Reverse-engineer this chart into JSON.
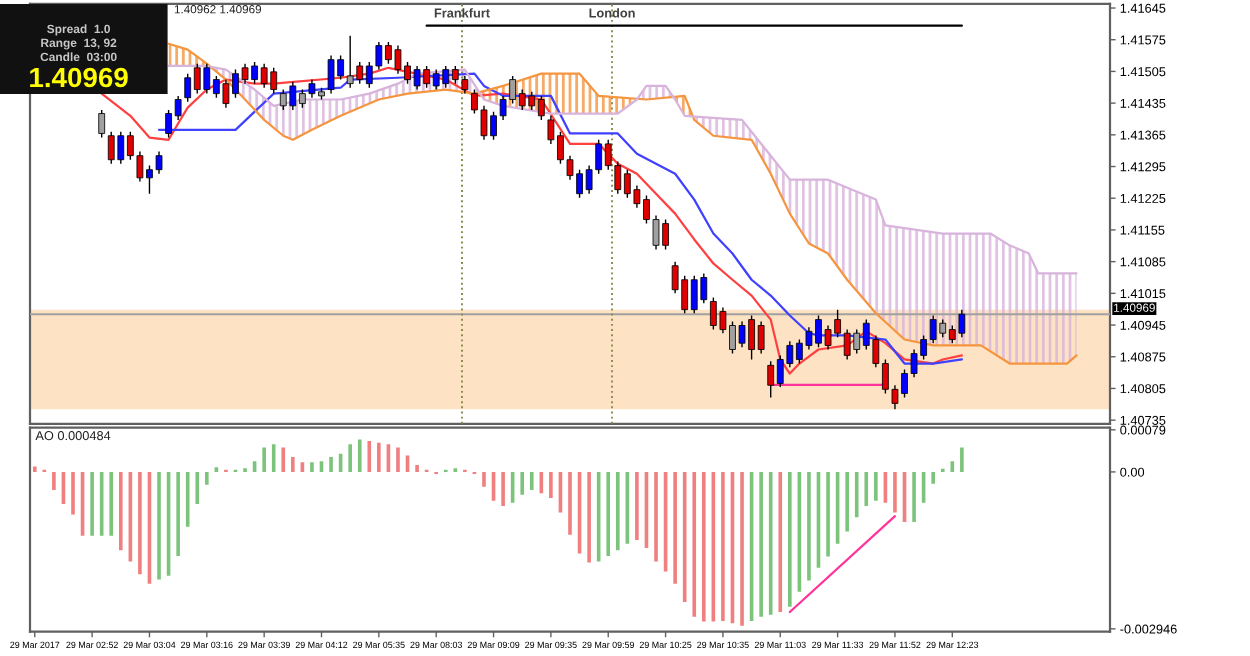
{
  "chart_data": [
    {
      "type": "candlestick",
      "annotations": [
        "1.40962 1.40969",
        "Spread  1.0",
        "Range  13, 92",
        "Candle  03:00",
        "1.40969",
        "Frankfurt",
        "London"
      ],
      "categories": [
        null,
        null,
        null,
        null,
        null,
        null,
        null,
        null,
        null,
        null,
        null,
        null,
        null,
        null,
        null,
        null,
        null,
        null,
        null,
        null,
        null,
        null,
        null,
        null,
        null,
        null,
        null,
        null,
        null,
        null,
        null,
        null,
        null,
        null,
        null,
        null,
        null,
        null,
        null,
        null,
        null,
        null,
        null,
        null,
        null,
        null,
        null,
        null,
        null,
        null,
        null,
        null,
        null,
        null,
        null,
        null,
        null,
        null,
        null,
        null,
        null,
        null,
        null,
        null,
        null,
        null,
        null,
        null,
        null,
        null,
        null,
        null,
        null,
        null,
        null,
        null,
        null,
        null,
        null,
        null,
        null,
        null,
        null,
        null,
        null,
        null,
        null,
        null,
        null,
        null,
        null,
        null,
        null,
        null,
        null,
        null,
        null,
        null,
        null,
        null,
        null,
        null,
        null,
        null,
        null,
        null,
        null,
        null,
        null,
        null,
        null,
        null,
        null
      ],
      "ohlc": [
        null,
        null,
        null,
        null,
        null,
        null,
        null,
        [
          1.41412,
          1.4142,
          1.41359,
          1.41368
        ],
        [
          1.41363,
          1.41372,
          1.41301,
          1.4131
        ],
        [
          1.4131,
          1.41372,
          1.41301,
          1.41363
        ],
        [
          1.41363,
          1.41372,
          1.4131,
          1.41319
        ],
        [
          1.41319,
          1.41328,
          1.41262,
          1.4127
        ],
        [
          1.4127,
          1.41297,
          1.41235,
          1.41288
        ],
        [
          1.41288,
          1.41328,
          1.41279,
          1.41319
        ],
        [
          1.41368,
          1.4142,
          1.41359,
          1.41412
        ],
        [
          1.41407,
          1.41451,
          1.41398,
          1.41443
        ],
        [
          1.41447,
          1.415,
          1.41438,
          1.41491
        ],
        [
          1.41513,
          1.41522,
          1.41456,
          1.41465
        ],
        [
          1.41465,
          1.41522,
          1.41456,
          1.41513
        ],
        [
          1.41456,
          1.41495,
          1.41447,
          1.41487
        ],
        [
          1.41478,
          1.41487,
          1.41425,
          1.41434
        ],
        [
          1.41456,
          1.41509,
          1.41447,
          1.415
        ],
        [
          1.41513,
          1.41522,
          1.41478,
          1.41487
        ],
        [
          1.41487,
          1.41526,
          1.41478,
          1.41517
        ],
        [
          1.41513,
          1.41522,
          1.41469,
          1.41478
        ],
        [
          1.41504,
          1.41513,
          1.41456,
          1.41465
        ],
        [
          1.41456,
          1.41465,
          1.4142,
          1.41429
        ],
        [
          1.41429,
          1.41482,
          1.4142,
          1.41473
        ],
        [
          1.41456,
          1.41465,
          1.41425,
          1.41434
        ],
        [
          1.41456,
          1.41487,
          1.41447,
          1.41478
        ],
        [
          1.4146,
          1.41469,
          1.41443,
          1.41451
        ],
        [
          1.41465,
          1.4154,
          1.41456,
          1.41531
        ],
        [
          1.41495,
          1.4154,
          1.41487,
          1.41531
        ],
        [
          1.41495,
          1.41584,
          1.41469,
          1.41478
        ],
        [
          1.41517,
          1.41526,
          1.41478,
          1.41487
        ],
        [
          1.41478,
          1.41526,
          1.41469,
          1.41517
        ],
        [
          1.41517,
          1.4157,
          1.41509,
          1.41562
        ],
        [
          1.41562,
          1.4157,
          1.41522,
          1.41531
        ],
        [
          1.41553,
          1.41562,
          1.415,
          1.41509
        ],
        [
          1.41517,
          1.41526,
          1.41478,
          1.41487
        ],
        [
          1.41473,
          1.41517,
          1.41465,
          1.41509
        ],
        [
          1.41509,
          1.41517,
          1.41469,
          1.41478
        ],
        [
          1.41473,
          1.41509,
          1.41465,
          1.415
        ],
        [
          1.41478,
          1.41517,
          1.41469,
          1.41509
        ],
        [
          1.41509,
          1.41517,
          1.41478,
          1.41487
        ],
        [
          1.41487,
          1.41495,
          1.41456,
          1.41465
        ],
        [
          1.41456,
          1.41465,
          1.41412,
          1.4142
        ],
        [
          1.4142,
          1.41429,
          1.41354,
          1.41363
        ],
        [
          1.41363,
          1.41416,
          1.41354,
          1.41407
        ],
        [
          1.41407,
          1.41451,
          1.41398,
          1.41443
        ],
        [
          1.41487,
          1.41495,
          1.41434,
          1.41443
        ],
        [
          1.41456,
          1.41465,
          1.4142,
          1.41429
        ],
        [
          1.41451,
          1.4146,
          1.4142,
          1.41429
        ],
        [
          1.41443,
          1.41451,
          1.41398,
          1.41407
        ],
        [
          1.41398,
          1.41407,
          1.41345,
          1.41354
        ],
        [
          1.41363,
          1.41372,
          1.41301,
          1.4131
        ],
        [
          1.4131,
          1.41319,
          1.41266,
          1.41275
        ],
        [
          1.41235,
          1.41288,
          1.41226,
          1.41279
        ],
        [
          1.41244,
          1.41297,
          1.41235,
          1.41288
        ],
        [
          1.41288,
          1.41354,
          1.41279,
          1.41345
        ],
        [
          1.41345,
          1.41354,
          1.41288,
          1.41297
        ],
        [
          1.41297,
          1.41306,
          1.41235,
          1.41244
        ],
        [
          1.41279,
          1.41288,
          1.41226,
          1.41235
        ],
        [
          1.41244,
          1.41253,
          1.41204,
          1.41213
        ],
        [
          1.41222,
          1.41231,
          1.41169,
          1.41178
        ],
        [
          1.41178,
          1.41187,
          1.41112,
          1.41121
        ],
        [
          1.41169,
          1.41178,
          1.41112,
          1.41121
        ],
        [
          1.41076,
          1.41085,
          1.41015,
          1.41023
        ],
        [
          1.41045,
          1.41054,
          1.40971,
          1.40979
        ],
        [
          1.40979,
          1.41054,
          1.40971,
          1.41045
        ],
        [
          1.41001,
          1.41059,
          1.40993,
          1.4105
        ],
        [
          1.40997,
          1.41006,
          1.40935,
          1.40944
        ],
        [
          1.40975,
          1.40984,
          1.40927,
          1.40935
        ],
        [
          1.40944,
          1.40953,
          1.40882,
          1.40891
        ],
        [
          1.40905,
          1.40953,
          1.40896,
          1.40944
        ],
        [
          1.40957,
          1.40966,
          1.40869,
          1.40891
        ],
        [
          1.40944,
          1.40953,
          1.40882,
          1.40891
        ],
        [
          1.40856,
          1.40865,
          1.40785,
          1.40812
        ],
        [
          1.40816,
          1.40878,
          1.40808,
          1.40869
        ],
        [
          1.4086,
          1.40909,
          1.40852,
          1.409
        ],
        [
          1.40869,
          1.40913,
          1.4086,
          1.40905
        ],
        [
          1.409,
          1.4094,
          1.40891,
          1.40931
        ],
        [
          1.40905,
          1.40966,
          1.40896,
          1.40957
        ],
        [
          1.40935,
          1.40944,
          1.40891,
          1.409
        ],
        [
          1.40957,
          1.40979,
          1.40918,
          1.40927
        ],
        [
          1.40927,
          1.40935,
          1.40869,
          1.40878
        ],
        [
          1.40927,
          1.40935,
          1.40882,
          1.40891
        ],
        [
          1.409,
          1.40957,
          1.40891,
          1.40949
        ],
        [
          1.40913,
          1.40922,
          1.40852,
          1.4086
        ],
        [
          1.4086,
          1.40869,
          1.40794,
          1.40803
        ],
        [
          1.40803,
          1.40812,
          1.40759,
          1.40772
        ],
        [
          1.40794,
          1.40847,
          1.40785,
          1.40838
        ],
        [
          1.40838,
          1.40891,
          1.4083,
          1.40882
        ],
        [
          1.40878,
          1.40922,
          1.40869,
          1.40913
        ],
        [
          1.40913,
          1.40966,
          1.40905,
          1.40957
        ],
        [
          1.40949,
          1.40957,
          1.40918,
          1.40927
        ],
        [
          1.40935,
          1.40944,
          1.40905,
          1.40913
        ],
        [
          1.40927,
          1.40979,
          1.40918,
          1.40969
        ],
        null,
        null,
        null,
        null,
        null,
        null,
        null,
        null,
        null,
        null,
        null,
        null,
        null,
        null,
        null
      ],
      "colors": [
        "#0000ff",
        "#e00000",
        "#0000ff",
        "#e00000",
        "#e00000",
        "#e00000",
        "#e00000",
        "#a0a0a0",
        "#e00000",
        "#0000ff",
        "#e00000",
        "#e00000",
        "#0000ff",
        "#0000ff",
        "#0000ff",
        "#0000ff",
        "#0000ff",
        "#e00000",
        "#0000ff",
        "#0000ff",
        "#e00000",
        "#0000ff",
        "#e00000",
        "#0000ff",
        "#e00000",
        "#e00000",
        "#a0a0a0",
        "#0000ff",
        "#a0a0a0",
        "#0000ff",
        "#a0a0a0",
        "#0000ff",
        "#0000ff",
        "#a0a0a0",
        "#e00000",
        "#0000ff",
        "#0000ff",
        "#e00000",
        "#e00000",
        "#e00000",
        "#0000ff",
        "#e00000",
        "#0000ff",
        "#0000ff",
        "#e00000",
        "#e00000",
        "#e00000",
        "#e00000",
        "#0000ff",
        "#0000ff",
        "#a0a0a0",
        "#e00000",
        "#e00000",
        "#e00000",
        "#e00000",
        "#e00000",
        "#e00000",
        "#0000ff",
        "#0000ff",
        "#0000ff",
        "#e00000",
        "#e00000",
        "#e00000",
        "#e00000",
        "#e00000",
        "#a0a0a0",
        "#e00000",
        "#e00000",
        "#e00000",
        "#0000ff",
        "#0000ff",
        "#e00000",
        "#e00000",
        "#a0a0a0",
        "#0000ff",
        "#e00000",
        "#e00000",
        "#e00000",
        "#0000ff",
        "#0000ff",
        "#0000ff",
        "#0000ff",
        "#0000ff",
        "#e00000",
        "#e00000",
        "#e00000",
        "#a0a0a0",
        "#0000ff",
        "#e00000",
        "#e00000",
        "#e00000",
        "#0000ff",
        "#0000ff",
        "#0000ff",
        "#0000ff",
        "#a0a0a0",
        "#e00000",
        "#0000ff",
        null,
        null,
        null,
        null,
        null,
        null,
        null,
        null,
        null,
        null,
        null,
        null,
        null,
        null,
        null
      ],
      "series": [
        {
          "type": "line",
          "color": "#ff4040",
          "values": [
            null,
            null,
            null,
            null,
            null,
            null,
            null,
            1.41456,
            null,
            null,
            1.41407,
            null,
            1.41359,
            null,
            1.41354,
            1.4139,
            1.41425,
            null,
            1.41465,
            null,
            1.41487,
            null,
            null,
            1.41478,
            null,
            1.41478,
            null,
            null,
            null,
            null,
            null,
            null,
            1.41491,
            null,
            null,
            1.415,
            null,
            1.41513,
            null,
            null,
            null,
            null,
            null,
            1.41487,
            null,
            null,
            1.41451,
            null,
            null,
            1.41456,
            null,
            null,
            null,
            1.41443,
            null,
            null,
            1.41345,
            null,
            null,
            1.41345,
            null,
            1.41301,
            null,
            1.41279,
            null,
            1.41235,
            null,
            1.41191,
            null,
            1.41134,
            null,
            1.41081,
            null,
            1.41045,
            null,
            1.4101,
            null,
            1.40957,
            1.40869,
            1.40838,
            1.4086,
            null,
            1.40891,
            null,
            null,
            1.409,
            null,
            1.40931,
            null,
            1.40905,
            null,
            1.40869,
            null,
            null,
            1.4086,
            1.40869,
            null,
            1.40878,
            null,
            null,
            null,
            null,
            null,
            null,
            null,
            null,
            null,
            null,
            null,
            null,
            null,
            null,
            null
          ]
        },
        {
          "type": "line",
          "color": "#4040ff",
          "values": [
            null,
            null,
            null,
            null,
            null,
            null,
            null,
            null,
            null,
            null,
            null,
            null,
            null,
            1.41376,
            null,
            null,
            null,
            null,
            null,
            null,
            null,
            1.41376,
            null,
            null,
            null,
            1.41456,
            null,
            null,
            null,
            null,
            null,
            null,
            1.41469,
            1.41487,
            null,
            null,
            null,
            null,
            1.41491,
            null,
            null,
            null,
            null,
            null,
            null,
            null,
            1.415,
            1.41473,
            null,
            1.41451,
            null,
            null,
            null,
            null,
            1.41451,
            null,
            1.41368,
            null,
            null,
            null,
            null,
            1.41368,
            null,
            1.41323,
            null,
            1.41301,
            null,
            1.41279,
            null,
            1.41222,
            null,
            1.41147,
            null,
            1.41103,
            null,
            1.41045,
            null,
            1.4101,
            null,
            1.40966,
            null,
            1.40927,
            1.40922,
            null,
            null,
            1.40922,
            null,
            null,
            null,
            1.40913,
            null,
            1.4086,
            null,
            null,
            1.4086,
            null,
            null,
            1.40869,
            null,
            null,
            null,
            null,
            null,
            null,
            null,
            null,
            null,
            null,
            null,
            null,
            null,
            null,
            null
          ]
        },
        {
          "type": "line",
          "color": "#f5953f",
          "values": [
            null,
            null,
            null,
            null,
            null,
            null,
            null,
            null,
            null,
            null,
            null,
            null,
            null,
            null,
            1.41566,
            null,
            1.41553,
            null,
            1.41522,
            null,
            1.41487,
            null,
            1.41443,
            null,
            1.41398,
            null,
            1.41363,
            1.41354,
            null,
            1.41376,
            null,
            null,
            1.41407,
            null,
            null,
            null,
            1.41443,
            null,
            null,
            1.41456,
            null,
            null,
            null,
            1.41465,
            null,
            null,
            1.41456,
            null,
            null,
            1.41473,
            null,
            null,
            null,
            1.415,
            null,
            null,
            null,
            1.415,
            null,
            1.41451,
            null,
            null,
            null,
            null,
            1.41443,
            null,
            null,
            null,
            1.41451,
            1.41398,
            null,
            1.41363,
            null,
            null,
            null,
            1.41354,
            null,
            1.41279,
            null,
            1.41191,
            null,
            1.41125,
            null,
            1.41103,
            null,
            1.41045,
            null,
            null,
            1.40971,
            null,
            null,
            1.40913,
            null,
            null,
            1.409,
            null,
            1.409,
            null,
            null,
            1.409,
            null,
            null,
            1.4086,
            null,
            null,
            null,
            null,
            null,
            1.4086,
            1.40878,
            null,
            null,
            null
          ]
        },
        {
          "type": "line",
          "color": "#d8b4dc",
          "values": [
            null,
            null,
            null,
            null,
            null,
            null,
            null,
            null,
            null,
            null,
            null,
            null,
            null,
            null,
            1.41517,
            null,
            null,
            null,
            1.41517,
            null,
            1.41509,
            null,
            null,
            1.41465,
            null,
            1.41429,
            null,
            null,
            1.41443,
            null,
            null,
            null,
            1.41443,
            null,
            null,
            1.41456,
            null,
            null,
            1.41478,
            null,
            1.415,
            null,
            null,
            null,
            null,
            1.41509,
            null,
            1.41443,
            null,
            1.41429,
            null,
            null,
            null,
            null,
            1.41412,
            null,
            null,
            null,
            null,
            null,
            null,
            1.41412,
            null,
            1.41443,
            1.41473,
            null,
            1.41473,
            1.41443,
            1.41407,
            null,
            null,
            null,
            null,
            null,
            1.41398,
            null,
            null,
            null,
            null,
            1.41266,
            null,
            null,
            null,
            1.41266,
            null,
            null,
            null,
            null,
            1.41222,
            1.41165,
            null,
            null,
            null,
            null,
            null,
            1.41147,
            null,
            null,
            null,
            null,
            1.41147,
            null,
            1.41121,
            null,
            1.41103,
            1.41059,
            null,
            null,
            null,
            1.41059,
            null,
            null,
            null
          ]
        },
        {
          "type": "line",
          "color": "#000000",
          "values": [
            null,
            null,
            null,
            null,
            null,
            null,
            null,
            null,
            null,
            null,
            null,
            null,
            null,
            null,
            null,
            null,
            null,
            null,
            null,
            null,
            null,
            null,
            null,
            null,
            null,
            null,
            null,
            null,
            null,
            null,
            null,
            null,
            null,
            null,
            null,
            null,
            null,
            null,
            null,
            null,
            null,
            1.41606,
            1.41606,
            1.41606,
            1.41606,
            1.41606,
            1.41606,
            1.41606,
            1.41606,
            1.41606,
            1.41606,
            1.41606,
            1.41606,
            1.41606,
            1.41606,
            1.41606,
            1.41606,
            1.41606,
            1.41606,
            1.41606,
            1.41606,
            1.41606,
            1.41606,
            1.41606,
            1.41606,
            1.41606,
            1.41606,
            1.41606,
            1.41606,
            1.41606,
            1.41606,
            1.41606,
            1.41606,
            1.41606,
            1.41606,
            1.41606,
            1.41606,
            1.41606,
            1.41606,
            1.41606,
            1.41606,
            1.41606,
            1.41606,
            1.41606,
            1.41606,
            1.41606,
            1.41606,
            1.41606,
            1.41606,
            1.41606,
            1.41606,
            1.41606,
            1.41606,
            1.41606,
            1.41606,
            1.41606,
            1.41606,
            1.41606,
            null,
            null,
            null,
            null,
            null,
            null,
            null,
            null,
            null,
            null,
            null,
            null,
            null,
            null,
            null
          ]
        },
        {
          "type": "line",
          "color": "#ff3399",
          "values": [
            null,
            null,
            null,
            null,
            null,
            null,
            null,
            null,
            null,
            null,
            null,
            null,
            null,
            null,
            null,
            null,
            null,
            null,
            null,
            null,
            null,
            null,
            null,
            null,
            null,
            null,
            null,
            null,
            null,
            null,
            null,
            null,
            null,
            null,
            null,
            null,
            null,
            null,
            null,
            null,
            null,
            null,
            null,
            null,
            null,
            null,
            null,
            null,
            null,
            null,
            null,
            null,
            null,
            null,
            null,
            null,
            null,
            null,
            null,
            null,
            null,
            null,
            null,
            null,
            null,
            null,
            null,
            null,
            null,
            null,
            null,
            null,
            null,
            null,
            null,
            null,
            null,
            1.40813,
            1.40813,
            1.40813,
            1.40813,
            1.40813,
            1.40813,
            1.40813,
            1.40813,
            1.40813,
            1.40813,
            1.40813,
            1.40813,
            1.40813,
            null,
            null,
            null,
            null,
            null,
            null,
            null,
            null,
            null,
            null,
            null,
            null,
            null,
            null,
            null,
            null,
            null,
            null,
            null,
            null,
            null,
            null,
            null
          ]
        }
      ],
      "bands": [
        {
          "axis": "y",
          "from": 1.40759,
          "to": 1.40979,
          "color": "#fde3c3"
        }
      ],
      "ref_lines": [
        {
          "axis": "y",
          "value": 1.40969,
          "label": "1.40969",
          "color": "#a0a0a0",
          "line_style": "solid"
        }
      ],
      "ylim": [
        1.40727,
        1.41654
      ],
      "yticks": [
        1.41645,
        1.41575,
        1.41505,
        1.41435,
        1.41365,
        1.41295,
        1.41225,
        1.41155,
        1.41085,
        1.41015,
        1.40945,
        1.40875,
        1.40805,
        1.40735
      ],
      "tick_labels": "y"
    },
    {
      "type": "bar",
      "title": "AO 0.000484",
      "categories": [
        "29 Mar 2017",
        null,
        null,
        null,
        null,
        null,
        "29 Mar 02:52",
        null,
        null,
        null,
        null,
        null,
        "29 Mar 03:04",
        null,
        null,
        null,
        null,
        null,
        "29 Mar 03:16",
        null,
        null,
        null,
        null,
        null,
        "29 Mar 03:39",
        null,
        null,
        null,
        null,
        null,
        "29 Mar 04:12",
        null,
        null,
        null,
        null,
        null,
        "29 Mar 05:35",
        null,
        null,
        null,
        null,
        null,
        "29 Mar 08:03",
        null,
        null,
        null,
        null,
        null,
        "29 Mar 09:09",
        null,
        null,
        null,
        null,
        null,
        "29 Mar 09:35",
        null,
        null,
        null,
        null,
        null,
        "29 Mar 09:59",
        null,
        null,
        null,
        null,
        null,
        "29 Mar 10:25",
        null,
        null,
        null,
        null,
        null,
        "29 Mar 10:35",
        null,
        null,
        null,
        null,
        null,
        "29 Mar 11:03",
        null,
        null,
        null,
        null,
        null,
        "29 Mar 11:33",
        null,
        null,
        null,
        null,
        null,
        "29 Mar 11:52",
        null,
        null,
        null,
        null,
        null,
        "29 Mar 12:23",
        null,
        null,
        null,
        null,
        null,
        null,
        null,
        null,
        null,
        null,
        null,
        null,
        null,
        null,
        null,
        null
      ],
      "values": [
        0.0001,
        4e-05,
        -0.00034,
        -0.0006,
        -0.0008,
        -0.0012,
        -0.0012,
        -0.0012,
        -0.0012,
        -0.00147,
        -0.00168,
        -0.00192,
        -0.0021,
        -0.00202,
        -0.00195,
        -0.00158,
        -0.00103,
        -0.0006,
        -0.00024,
        9e-05,
        4e-05,
        4e-05,
        7e-05,
        0.0002,
        0.00046,
        0.00052,
        0.00046,
        0.00028,
        0.00018,
        0.00018,
        0.0002,
        0.00028,
        0.00034,
        0.00052,
        0.00061,
        0.00058,
        0.00055,
        0.00052,
        0.00046,
        0.00031,
        0.00013,
        4e-05,
        -4e-05,
        4e-05,
        7e-05,
        4e-05,
        -4e-05,
        -0.00028,
        -0.00054,
        -0.00064,
        -0.00058,
        -0.00043,
        -0.00034,
        -0.0004,
        -0.00049,
        -0.00076,
        -0.00118,
        -0.00153,
        -0.0017,
        -0.00168,
        -0.00158,
        -0.00147,
        -0.00135,
        -0.00128,
        -0.00143,
        -0.00168,
        -0.00187,
        -0.0021,
        -0.00244,
        -0.00272,
        -0.00281,
        -0.00281,
        -0.0028,
        -0.00284,
        -0.00289,
        -0.0028,
        -0.00272,
        -0.00268,
        -0.00263,
        -0.00253,
        -0.00225,
        -0.00204,
        -0.0018,
        -0.00159,
        -0.00135,
        -0.00112,
        -0.00085,
        -0.00064,
        -0.00054,
        -0.00058,
        -0.00076,
        -0.00094,
        -0.00094,
        -0.00058,
        -0.00022,
        6e-05,
        0.0002,
        0.00046,
        null,
        null,
        null,
        null,
        null,
        null,
        null,
        null,
        null,
        null,
        null,
        null,
        null,
        null,
        null
      ],
      "colors": [
        "#f08080",
        "#f08080",
        "#f08080",
        "#f08080",
        "#f08080",
        "#f08080",
        "#7cc47c",
        "#7cc47c",
        "#7cc47c",
        "#f08080",
        "#f08080",
        "#f08080",
        "#f08080",
        "#7cc47c",
        "#7cc47c",
        "#7cc47c",
        "#7cc47c",
        "#7cc47c",
        "#7cc47c",
        "#7cc47c",
        "#f08080",
        "#7cc47c",
        "#7cc47c",
        "#7cc47c",
        "#7cc47c",
        "#7cc47c",
        "#f08080",
        "#f08080",
        "#f08080",
        "#7cc47c",
        "#7cc47c",
        "#7cc47c",
        "#7cc47c",
        "#7cc47c",
        "#7cc47c",
        "#f08080",
        "#f08080",
        "#f08080",
        "#f08080",
        "#f08080",
        "#f08080",
        "#f08080",
        "#f08080",
        "#7cc47c",
        "#7cc47c",
        "#f08080",
        "#f08080",
        "#f08080",
        "#f08080",
        "#f08080",
        "#7cc47c",
        "#7cc47c",
        "#7cc47c",
        "#f08080",
        "#f08080",
        "#f08080",
        "#f08080",
        "#f08080",
        "#f08080",
        "#7cc47c",
        "#7cc47c",
        "#7cc47c",
        "#7cc47c",
        "#f08080",
        "#f08080",
        "#f08080",
        "#f08080",
        "#f08080",
        "#f08080",
        "#f08080",
        "#f08080",
        "#f08080",
        "#f08080",
        "#f08080",
        "#f08080",
        "#7cc47c",
        "#7cc47c",
        "#7cc47c",
        "#f08080",
        "#7cc47c",
        "#7cc47c",
        "#7cc47c",
        "#7cc47c",
        "#7cc47c",
        "#7cc47c",
        "#7cc47c",
        "#7cc47c",
        "#7cc47c",
        "#7cc47c",
        "#f08080",
        "#f08080",
        "#f08080",
        "#7cc47c",
        "#7cc47c",
        "#7cc47c",
        "#7cc47c",
        "#7cc47c",
        "#7cc47c",
        null,
        null,
        null,
        null,
        null,
        null,
        null,
        null,
        null,
        null,
        null,
        null,
        null,
        null,
        null
      ],
      "series": [
        {
          "type": "line",
          "color": "#ff3399",
          "values": [
            null,
            null,
            null,
            null,
            null,
            null,
            null,
            null,
            null,
            null,
            null,
            null,
            null,
            null,
            null,
            null,
            null,
            null,
            null,
            null,
            null,
            null,
            null,
            null,
            null,
            null,
            null,
            null,
            null,
            null,
            null,
            null,
            null,
            null,
            null,
            null,
            null,
            null,
            null,
            null,
            null,
            null,
            null,
            null,
            null,
            null,
            null,
            null,
            null,
            null,
            null,
            null,
            null,
            null,
            null,
            null,
            null,
            null,
            null,
            null,
            null,
            null,
            null,
            null,
            null,
            null,
            null,
            null,
            null,
            null,
            null,
            null,
            null,
            null,
            null,
            null,
            null,
            null,
            null,
            -0.00263,
            null,
            null,
            null,
            null,
            null,
            null,
            null,
            null,
            null,
            null,
            -0.00083,
            null,
            null,
            null,
            null,
            null,
            null,
            null,
            null,
            null,
            null,
            null,
            null,
            null,
            null,
            null,
            null,
            null,
            null,
            null,
            null,
            null,
            null
          ]
        }
      ],
      "ylim": [
        -0.003,
        0.00083
      ],
      "yticks": [
        {
          "value": 0.00079,
          "label": "0.00079"
        },
        {
          "value": 0,
          "label": "0.00"
        },
        {
          "value": -0.002946,
          "label": "-0.002946"
        }
      ]
    }
  ]
}
